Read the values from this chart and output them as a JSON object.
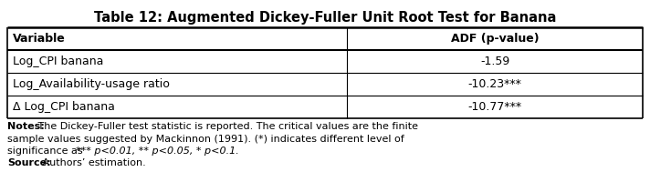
{
  "title": "Table 12: Augmented Dickey-Fuller Unit Root Test for Banana",
  "col_headers": [
    "Variable",
    "ADF (p-value)"
  ],
  "rows": [
    [
      "Log_CPI banana",
      "-1.59"
    ],
    [
      "Log_Availability-usage ratio",
      "-10.23***"
    ],
    [
      "Δ Log_CPI banana",
      "-10.77***"
    ]
  ],
  "notes_bold": "Notes:",
  "notes_line1_normal": " The Dickey-Fuller test statistic is reported. The critical values are the finite",
  "notes_line2": "sample values suggested by Mackinnon (1991). (*) indicates different level of",
  "notes_line3_normal": "significance as ",
  "notes_line3_italic": "*** p<0.01, ** p<0.05, * p<0.1.",
  "source_bold": "Source:",
  "source_normal": " Authors’ estimation.",
  "bg_color": "#ffffff",
  "border_color": "#000000",
  "title_fontsize": 10.5,
  "header_fontsize": 9,
  "body_fontsize": 9,
  "notes_fontsize": 8,
  "col_split": 0.535
}
